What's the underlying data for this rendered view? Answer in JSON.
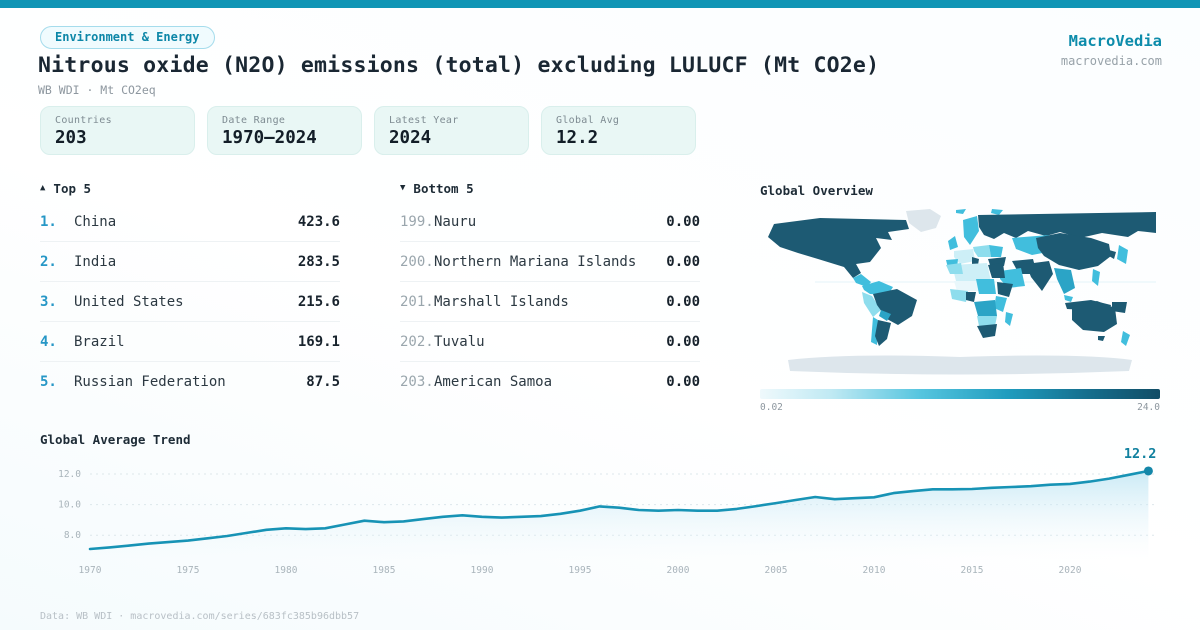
{
  "header": {
    "badge": "Environment & Energy",
    "title": "Nitrous oxide (N2O) emissions (total) excluding LULUCF (Mt CO2e)",
    "subtitle": "WB WDI · Mt CO2eq",
    "brand": "MacroVedia",
    "brand_domain": "macrovedia.com"
  },
  "colors": {
    "accent": "#1095b5",
    "map_dark": "#1d5a73",
    "map_light": "#eff9fc",
    "line": "#1793b5"
  },
  "stats": [
    {
      "label": "Countries",
      "value": "203"
    },
    {
      "label": "Date Range",
      "value": "1970–2024"
    },
    {
      "label": "Latest Year",
      "value": "2024"
    },
    {
      "label": "Global Avg",
      "value": "12.2"
    }
  ],
  "top5": {
    "arrow": "▲",
    "header": "Top 5",
    "rows": [
      {
        "rank": "1.",
        "name": "China",
        "value": "423.6"
      },
      {
        "rank": "2.",
        "name": "India",
        "value": "283.5"
      },
      {
        "rank": "3.",
        "name": "United States",
        "value": "215.6"
      },
      {
        "rank": "4.",
        "name": "Brazil",
        "value": "169.1"
      },
      {
        "rank": "5.",
        "name": "Russian Federation",
        "value": "87.5"
      }
    ]
  },
  "bottom5": {
    "arrow": "▼",
    "header": "Bottom 5",
    "rows": [
      {
        "rank": "199.",
        "name": "Nauru",
        "value": "0.00"
      },
      {
        "rank": "200.",
        "name": "Northern Mariana Islands",
        "value": "0.00"
      },
      {
        "rank": "201.",
        "name": "Marshall Islands",
        "value": "0.00"
      },
      {
        "rank": "202.",
        "name": "Tuvalu",
        "value": "0.00"
      },
      {
        "rank": "203.",
        "name": "American Samoa",
        "value": "0.00"
      }
    ]
  },
  "map": {
    "title": "Global Overview",
    "scale_min": "0.02",
    "scale_max": "24.0"
  },
  "footer": "Data: WB WDI · macrovedia.com/series/683fc385b96dbb57",
  "chart_data": {
    "type": "area",
    "title": "Global Average Trend",
    "xlabel": "",
    "ylabel": "",
    "end_label": "12.2",
    "yticks": [
      8.0,
      10.0,
      12.0
    ],
    "xticks": [
      1970,
      1975,
      1980,
      1985,
      1990,
      1995,
      2000,
      2005,
      2010,
      2015,
      2020
    ],
    "ylim": [
      6.8,
      13.2
    ],
    "x": [
      1970,
      1971,
      1972,
      1973,
      1974,
      1975,
      1976,
      1977,
      1978,
      1979,
      1980,
      1981,
      1982,
      1983,
      1984,
      1985,
      1986,
      1987,
      1988,
      1989,
      1990,
      1991,
      1992,
      1993,
      1994,
      1995,
      1996,
      1997,
      1998,
      1999,
      2000,
      2001,
      2002,
      2003,
      2004,
      2005,
      2006,
      2007,
      2008,
      2009,
      2010,
      2011,
      2012,
      2013,
      2014,
      2015,
      2016,
      2017,
      2018,
      2019,
      2020,
      2021,
      2022,
      2023,
      2024
    ],
    "values": [
      7.1,
      7.2,
      7.32,
      7.45,
      7.55,
      7.65,
      7.8,
      7.95,
      8.15,
      8.35,
      8.45,
      8.4,
      8.45,
      8.7,
      8.95,
      8.85,
      8.9,
      9.05,
      9.2,
      9.3,
      9.2,
      9.15,
      9.2,
      9.25,
      9.4,
      9.6,
      9.88,
      9.8,
      9.65,
      9.6,
      9.65,
      9.6,
      9.6,
      9.72,
      9.9,
      10.1,
      10.3,
      10.5,
      10.35,
      10.42,
      10.48,
      10.75,
      10.88,
      11.0,
      11.0,
      11.02,
      11.1,
      11.15,
      11.2,
      11.3,
      11.35,
      11.5,
      11.7,
      11.95,
      12.2
    ]
  }
}
